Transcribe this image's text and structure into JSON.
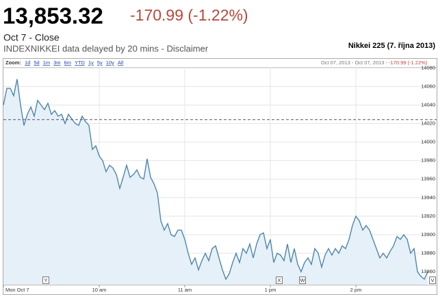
{
  "quote": {
    "price": "13,853.32",
    "change": "-170.99 (-1.22%)",
    "status": "Oct 7 - Close",
    "source": "INDEXNIKKEI data delayed by 20 mins - Disclaimer"
  },
  "toolbar": {
    "label": "Zoom:",
    "links": [
      "1d",
      "5d",
      "1m",
      "3m",
      "6m",
      "YTD",
      "1y",
      "5y",
      "10y",
      "All"
    ],
    "range": "Oct 07, 2013 - Oct 07, 2013 -",
    "change": "-170.99 (-1.22%)"
  },
  "chart_data": {
    "type": "line",
    "title": "Nikkei 225 (7. října 2013)",
    "categories": [
      "Mon Oct 7",
      null,
      null,
      null,
      null,
      null,
      null,
      null,
      null,
      null,
      null,
      null,
      null,
      null,
      null,
      null,
      null,
      null,
      null,
      null,
      null,
      null,
      null,
      null,
      null,
      null,
      null,
      null,
      "10 am",
      null,
      null,
      null,
      null,
      null,
      null,
      null,
      null,
      null,
      null,
      null,
      null,
      null,
      null,
      null,
      null,
      null,
      null,
      null,
      null,
      null,
      null,
      null,
      null,
      "11 am",
      null,
      null,
      null,
      null,
      null,
      null,
      null,
      null,
      null,
      null,
      null,
      null,
      null,
      null,
      null,
      null,
      null,
      null,
      null,
      null,
      null,
      null,
      null,
      null,
      "1 pm",
      null,
      null,
      null,
      null,
      null,
      null,
      null,
      null,
      null,
      null,
      null,
      null,
      null,
      null,
      null,
      null,
      null,
      null,
      null,
      null,
      null,
      null,
      null,
      null,
      "2 pm",
      null,
      null,
      null,
      null,
      null,
      null,
      null,
      null,
      null,
      null,
      null,
      null,
      null,
      null,
      null,
      null,
      null,
      null,
      null,
      null,
      null
    ],
    "series": [
      {
        "color": "#4e86a8",
        "values": [
          14040,
          14058,
          14058,
          14050,
          14068,
          14040,
          14018,
          14030,
          14038,
          14028,
          14045,
          14040,
          14035,
          14042,
          14030,
          14034,
          14028,
          14030,
          14020,
          14030,
          14025,
          14020,
          14018,
          14028,
          14022,
          14018,
          13992,
          13996,
          13985,
          13980,
          13968,
          13975,
          13972,
          13965,
          13950,
          13962,
          13975,
          13962,
          13965,
          13970,
          13962,
          13960,
          13982,
          13962,
          13955,
          13945,
          13915,
          13905,
          13912,
          13900,
          13898,
          13905,
          13905,
          13895,
          13880,
          13868,
          13875,
          13862,
          13872,
          13880,
          13872,
          13885,
          13888,
          13875,
          13862,
          13852,
          13858,
          13870,
          13880,
          13870,
          13885,
          13880,
          13890,
          13875,
          13890,
          13900,
          13902,
          13885,
          13895,
          13870,
          13880,
          13878,
          13872,
          13890,
          13870,
          13885,
          13868,
          13860,
          13870,
          13875,
          13868,
          13885,
          13880,
          13865,
          13878,
          13885,
          13878,
          13885,
          13880,
          13888,
          13885,
          13895,
          13910,
          13920,
          13915,
          13905,
          13910,
          13905,
          13895,
          13885,
          13875,
          13880,
          13875,
          13882,
          13888,
          13898,
          13895,
          13900,
          13895,
          13880,
          13885,
          13860,
          13855,
          13852,
          13860
        ]
      }
    ],
    "reference_line": 14024.31,
    "ylim": [
      13846,
      14081
    ],
    "yticks": [
      13860,
      13880,
      13900,
      13920,
      13940,
      13960,
      13980,
      14000,
      14020,
      14040,
      14060,
      14080
    ],
    "grid": true,
    "area_color": "#e6f0f9",
    "flags": [
      "Y",
      "X",
      "W",
      "V"
    ]
  }
}
